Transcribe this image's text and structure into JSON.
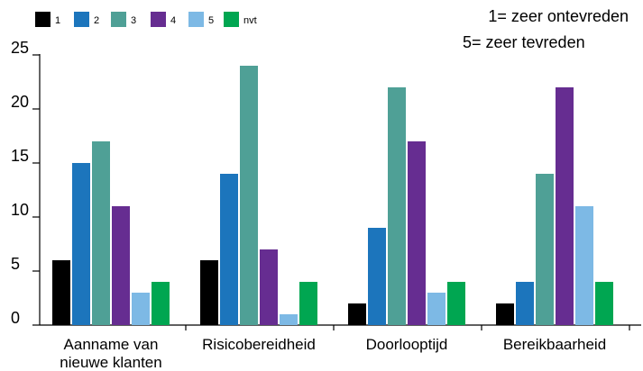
{
  "chart_data": {
    "type": "bar",
    "categories": [
      [
        "Aanname van",
        "nieuwe klanten"
      ],
      [
        "Risicobereidheid"
      ],
      [
        "Doorlooptijd"
      ],
      [
        "Bereikbaarheid"
      ]
    ],
    "series": [
      {
        "name": "1",
        "color": "#000000",
        "values": [
          6,
          6,
          2,
          2
        ]
      },
      {
        "name": "2",
        "color": "#1c75bc",
        "values": [
          15,
          14,
          9,
          4
        ]
      },
      {
        "name": "3",
        "color": "#4fa096",
        "values": [
          17,
          24,
          22,
          14
        ]
      },
      {
        "name": "4",
        "color": "#662d91",
        "values": [
          11,
          7,
          17,
          22
        ]
      },
      {
        "name": "5",
        "color": "#7db9e5",
        "values": [
          3,
          1,
          3,
          11
        ]
      },
      {
        "name": "nvt",
        "color": "#00a651",
        "values": [
          4,
          4,
          4,
          4
        ]
      }
    ],
    "ylim": [
      0,
      25
    ],
    "yticks": [
      "0",
      "5",
      "10",
      "15",
      "20",
      "25"
    ],
    "title": "",
    "xlabel": "",
    "ylabel": "",
    "legend_position": "top-left",
    "grid": false,
    "annotations": [
      "1= zeer ontevreden",
      "5= zeer tevreden"
    ]
  }
}
